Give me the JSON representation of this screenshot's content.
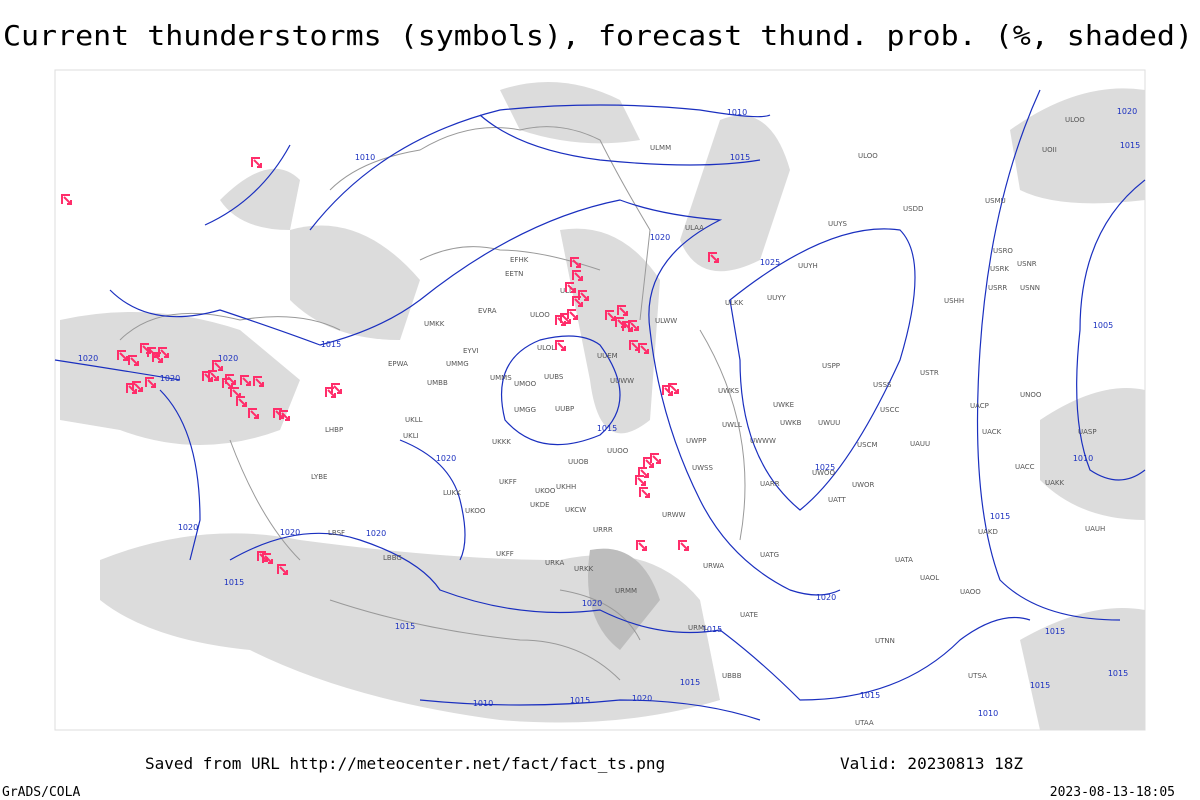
{
  "title": "Current thunderstorms (symbols), forecast thund. prob. (%, shaded)",
  "isobar_labels": [
    "1010",
    "1010",
    "1015",
    "1020",
    "1015",
    "1020",
    "1025",
    "1005",
    "1015",
    "1020",
    "1020",
    "1020",
    "1020",
    "1015",
    "1025",
    "1010",
    "1015",
    "1020",
    "1020",
    "1020",
    "1015",
    "1020",
    "1020",
    "1015",
    "1015",
    "1015",
    "1015",
    "1015",
    "1015",
    "1010",
    "1015",
    "1020",
    "1015",
    "1010"
  ],
  "station_labels": [
    "ULMM",
    "ULOO",
    "UOII",
    "ULOO",
    "UUYS",
    "USDD",
    "USMU",
    "ULAA",
    "UUYH",
    "USRO",
    "USRK",
    "USNR",
    "USRR",
    "USNN",
    "UUYY",
    "ULKK",
    "USHH",
    "ULWW",
    "EFHK",
    "EETN",
    "ULLI",
    "EVRA",
    "ULOO",
    "UMKK",
    "ULOL",
    "EYVI",
    "UUEM",
    "EPWA",
    "UMMG",
    "UMMS",
    "UUBS",
    "UUWW",
    "UMBB",
    "UMOO",
    "UWKS",
    "USPP",
    "USSS",
    "USTR",
    "UNOO",
    "UACP",
    "UWKE",
    "UWKB",
    "UWUU",
    "USCC",
    "UUBP",
    "UMGG",
    "UKLL",
    "UKLI",
    "UKKK",
    "UWWW",
    "UWLL",
    "UWPP",
    "UACK",
    "UASP",
    "USCM",
    "UAUU",
    "LHBP",
    "UUOO",
    "UUOB",
    "UWSS",
    "UWOO",
    "UACC",
    "UAKK",
    "LYBE",
    "UKHH",
    "UKFF",
    "UKOO",
    "UARR",
    "UWOR",
    "LUKK",
    "UATT",
    "UKDE",
    "UKOO",
    "UKCW",
    "URWW",
    "LBSF",
    "URRR",
    "UAUH",
    "UAKD",
    "LBBG",
    "UKFF",
    "UATG",
    "URKA",
    "URKK",
    "URWA",
    "UATA",
    "UAOL",
    "UAOO",
    "UTNN",
    "UBBB",
    "UTSA",
    "UTAA",
    "URMM",
    "URML",
    "UATE"
  ],
  "footer": {
    "source": "Saved from URL http://meteocenter.net/fact/fact_ts.png",
    "valid": "Valid: 20230813 18Z",
    "software": "GrADS/COLA",
    "timestamp": "2023-08-13-18:05"
  }
}
